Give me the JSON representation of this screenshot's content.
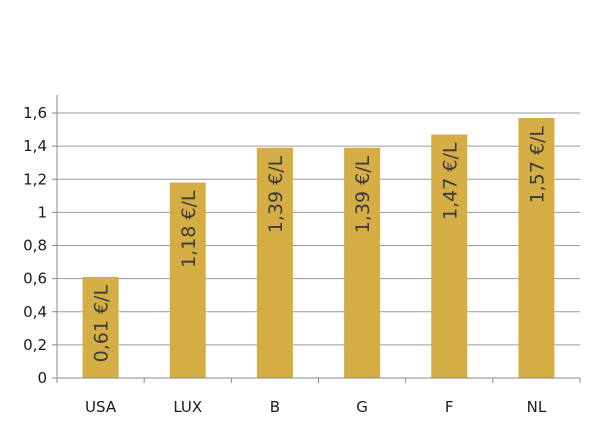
{
  "chart_data": {
    "type": "bar",
    "categories": [
      "USA",
      "LUX",
      "B",
      "G",
      "F",
      "NL"
    ],
    "values": [
      0.61,
      1.18,
      1.39,
      1.39,
      1.47,
      1.57
    ],
    "data_labels": [
      "0,61 €/L",
      "1,18 €/L",
      "1,39 €/L",
      "1,39 €/L",
      "1,47 €/L",
      "1,57 €/L"
    ],
    "yticks": [
      0,
      0.2,
      0.4,
      0.6,
      0.8,
      1,
      1.2,
      1.4,
      1.6
    ],
    "ytick_labels": [
      "0",
      "0,2",
      "0,4",
      "0,6",
      "0,8",
      "1",
      "1,2",
      "1,4",
      "1,6"
    ],
    "ylim": [
      0,
      1.6
    ],
    "title": "",
    "xlabel": "",
    "ylabel": "",
    "grid": true,
    "bar_color": "#D4AE45"
  }
}
